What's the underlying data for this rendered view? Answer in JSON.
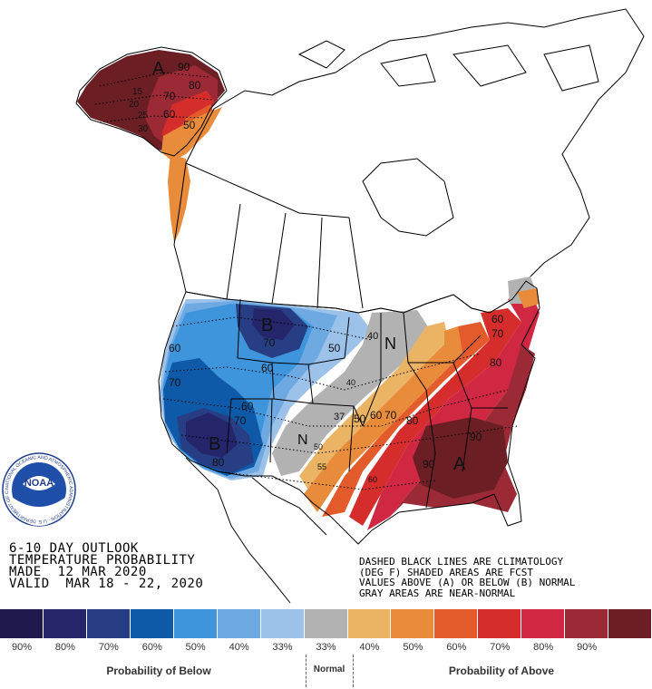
{
  "outlook": {
    "line1": "6-10 DAY OUTLOOK",
    "line2": "TEMPERATURE PROBABILITY",
    "line3": "MADE  12 MAR 2020",
    "line4": "VALID  MAR 18 - 22, 2020"
  },
  "notes": {
    "line1": "DASHED BLACK LINES ARE CLIMATOLOGY",
    "line2": "(DEG F) SHADED AREAS ARE FCST",
    "line3": "VALUES ABOVE (A) OR BELOW (B) NORMAL",
    "line4": "GRAY AREAS ARE NEAR-NORMAL"
  },
  "logo": {
    "text": "NOAA",
    "ring_text": "NATIONAL OCEANIC AND ATMOSPHERIC ADMINISTRATION · U.S. DEPARTMENT OF COMMERCE"
  },
  "map_labels": {
    "ak_a": "A",
    "ak_90": "90",
    "ak_80": "80",
    "ak_70": "70",
    "ak_60": "60",
    "ak_50": "50",
    "ak_15": "15",
    "ak_20": "20",
    "ak_25": "25",
    "ak_30": "30",
    "b_north": "B",
    "b_north_70": "70",
    "b_north_60": "60",
    "b_north_50": "50",
    "b_west_60": "60",
    "b_west_70": "70",
    "b_mid_60": "60",
    "b_mid_70": "70",
    "b_south": "B",
    "b_south_80": "80",
    "n_north": "N",
    "n_south": "N",
    "n_40": "40",
    "n_40b": "40",
    "n_50": "50",
    "a_50": "50",
    "a_60": "60",
    "a_70": "70",
    "a_80": "80",
    "a_90": "90",
    "a_90b": "90",
    "a_80b": "80",
    "a_60b": "60",
    "a_70b": "70",
    "a_south": "A",
    "c_37": "37",
    "c_45": "45",
    "c_55": "55",
    "a_60c": "60",
    "a_50b": "50"
  },
  "legend": {
    "colors": [
      "#1e1a4d",
      "#25256b",
      "#273e85",
      "#0f5aa8",
      "#3e95dc",
      "#6fa9e2",
      "#9cc2ea",
      "#b2b2b2",
      "#ebb364",
      "#e88c3c",
      "#e35a2b",
      "#d52c2c",
      "#d02743",
      "#9c2a36",
      "#6b1f24"
    ],
    "below_labels": [
      "90%",
      "80%",
      "70%",
      "60%",
      "50%",
      "40%",
      "33%"
    ],
    "above_labels": [
      "33%",
      "40%",
      "50%",
      "60%",
      "70%",
      "80%",
      "90%"
    ],
    "below_title": "Probability of Below",
    "normal_title": "Normal",
    "above_title": "Probability of Above"
  }
}
